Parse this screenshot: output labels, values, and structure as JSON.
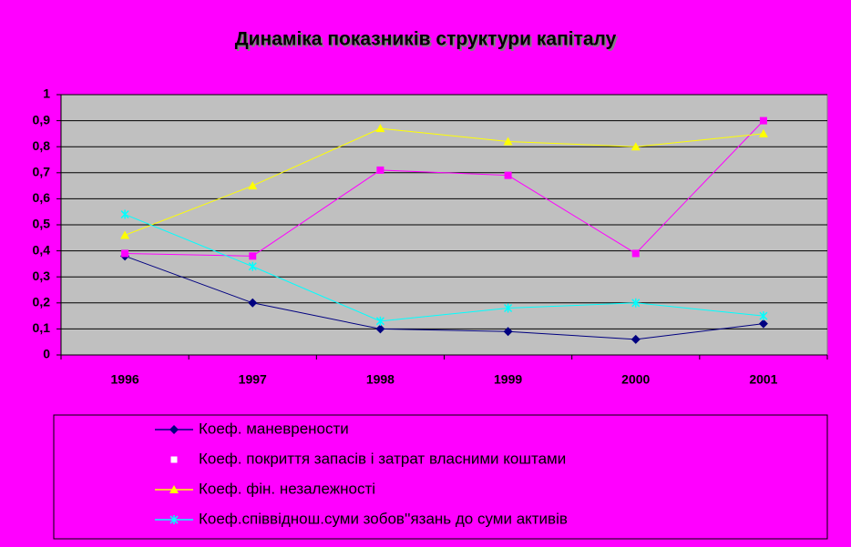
{
  "chart_data": {
    "type": "line",
    "title": "Динаміка показників структури капіталу",
    "categories": [
      "1996",
      "1997",
      "1998",
      "1999",
      "2000",
      "2001"
    ],
    "series": [
      {
        "name": "Коеф. маневрености",
        "color": "#000080",
        "marker": "diamond",
        "values": [
          0.38,
          0.2,
          0.1,
          0.09,
          0.06,
          0.12
        ]
      },
      {
        "name": "Коеф. покриття запасів і затрат власними коштами",
        "color": "#ff00ff",
        "marker": "square",
        "values": [
          0.39,
          0.38,
          0.71,
          0.69,
          0.39,
          0.9
        ]
      },
      {
        "name": "Коеф. фін. незалежності",
        "color": "#ffff00",
        "marker": "triangle",
        "values": [
          0.46,
          0.65,
          0.87,
          0.82,
          0.8,
          0.85
        ]
      },
      {
        "name": "Коеф.співвіднош.суми зобов''язань до суми активів",
        "color": "#00ffff",
        "marker": "x",
        "values": [
          0.54,
          0.34,
          0.13,
          0.18,
          0.2,
          0.15
        ]
      }
    ],
    "ylim": [
      0,
      1
    ],
    "yticks": [
      0,
      {
        "value": 0.1,
        "label": "0,1"
      },
      {
        "value": 0.2,
        "label": "0,2"
      },
      {
        "value": 0.3,
        "label": "0,3"
      },
      {
        "value": 0.4,
        "label": "0,4"
      },
      {
        "value": 0.5,
        "label": "0,5"
      },
      {
        "value": 0.6,
        "label": "0,6"
      },
      {
        "value": 0.7,
        "label": "0,7"
      },
      {
        "value": 0.8,
        "label": "0,8"
      },
      {
        "value": 0.9,
        "label": "0,9"
      },
      1
    ],
    "grid": true,
    "legend": "bottom"
  }
}
